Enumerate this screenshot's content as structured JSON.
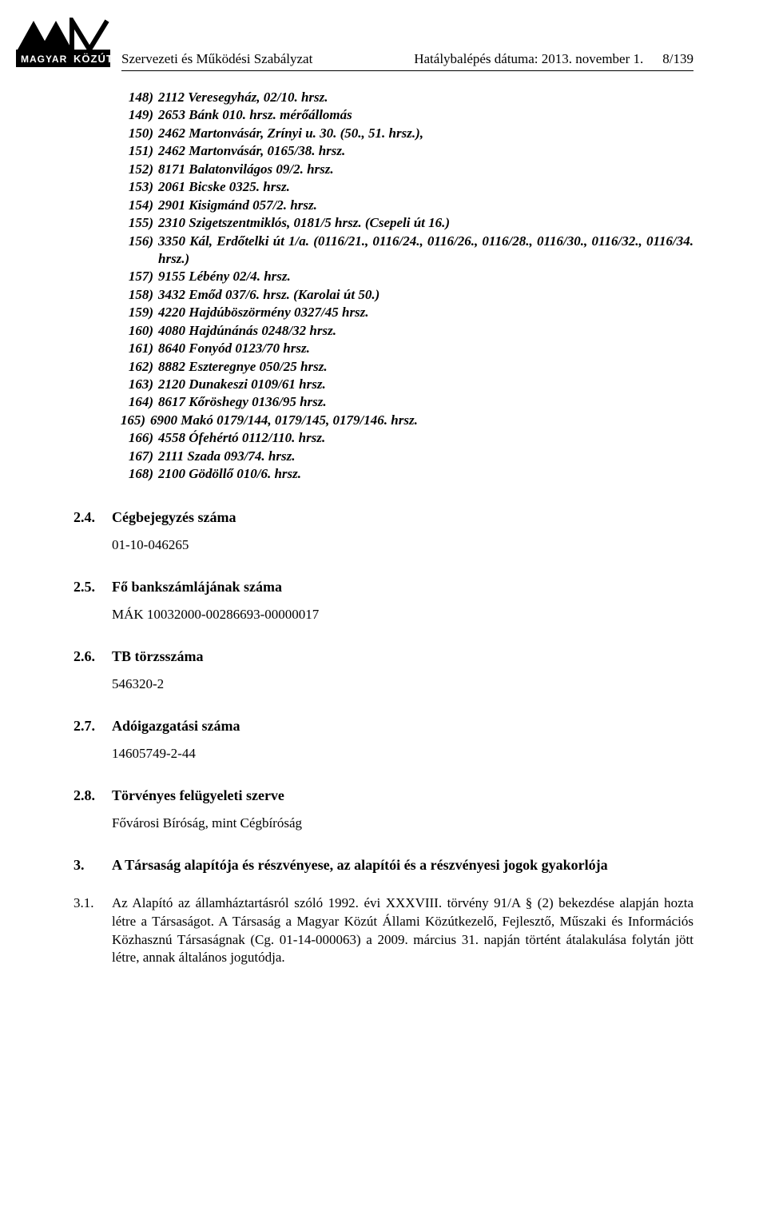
{
  "header": {
    "left": "Szervezeti és Működési Szabályzat",
    "right_a": "Hatálybalépés dátuma: 2013. november 1.",
    "right_b": "8/139"
  },
  "list_block": [
    {
      "n": "148)",
      "t": "2112 Veresegyház, 02/10. hrsz."
    },
    {
      "n": "149)",
      "t": "2653 Bánk 010. hrsz. mérőállomás"
    },
    {
      "n": "150)",
      "t": "2462 Martonvásár, Zrínyi u. 30. (50., 51. hrsz.),"
    },
    {
      "n": "151)",
      "t": "2462 Martonvásár, 0165/38. hrsz."
    },
    {
      "n": "152)",
      "t": "8171 Balatonvilágos 09/2. hrsz."
    },
    {
      "n": "153)",
      "t": "2061 Bicske 0325. hrsz."
    },
    {
      "n": "154)",
      "t": "2901 Kisigmánd 057/2. hrsz."
    },
    {
      "n": "155)",
      "t": "2310 Szigetszentmiklós, 0181/5 hrsz. (Csepeli út 16.)"
    },
    {
      "n": "156)",
      "t": "3350 Kál, Erdőtelki út 1/a. (0116/21., 0116/24., 0116/26., 0116/28., 0116/30., 0116/32., 0116/34. hrsz.)"
    },
    {
      "n": "157)",
      "t": "9155 Lébény 02/4. hrsz."
    },
    {
      "n": "158)",
      "t": "3432 Emőd  037/6. hrsz. (Karolai út 50.)"
    },
    {
      "n": "159)",
      "t": "4220 Hajdúböszörmény 0327/45 hrsz."
    },
    {
      "n": "160)",
      "t": "4080 Hajdúnánás 0248/32 hrsz."
    },
    {
      "n": "161)",
      "t": "8640 Fonyód 0123/70 hrsz."
    },
    {
      "n": "162)",
      "t": "8882 Eszteregnye 050/25 hrsz."
    },
    {
      "n": "163)",
      "t": "2120 Dunakeszi 0109/61 hrsz."
    },
    {
      "n": "164)",
      "t": "8617 Kőröshegy 0136/95 hrsz."
    },
    {
      "n": "165)",
      "t": "6900 Makó 0179/144, 0179/145, 0179/146. hrsz.",
      "outdent": true
    },
    {
      "n": "166)",
      "t": "4558 Ófehértó 0112/110. hrsz."
    },
    {
      "n": "167)",
      "t": "2111 Szada 093/74. hrsz."
    },
    {
      "n": "168)",
      "t": "2100 Gödöllő 010/6. hrsz."
    }
  ],
  "sections": [
    {
      "num": "2.4.",
      "title": "Cégbejegyzés száma",
      "body": "01-10-046265"
    },
    {
      "num": "2.5.",
      "title": "Fő bankszámlájának száma",
      "body": "MÁK 10032000-00286693-00000017"
    },
    {
      "num": "2.6.",
      "title": "TB törzsszáma",
      "body": "546320-2"
    },
    {
      "num": "2.7.",
      "title": "Adóigazgatási száma",
      "body": "14605749-2-44"
    },
    {
      "num": "2.8.",
      "title": "Törvényes felügyeleti szerve",
      "body": "Fővárosi Bíróság, mint Cégbíróság"
    }
  ],
  "section3": {
    "num": "3.",
    "title": "A Társaság alapítója és részvényese, az alapítói és a részvényesi jogok gyakorlója"
  },
  "para31": {
    "num": "3.1.",
    "text": "Az Alapító az államháztartásról szóló 1992. évi XXXVIII. törvény 91/A § (2) bekezdése alapján hozta létre a Társaságot. A Társaság a Magyar Közút Állami Közútkezelő, Fejlesztő, Műszaki és Információs Közhasznú Társaságnak (Cg. 01-14-000063) a 2009. március 31. napján történt átalakulása folytán jött létre, annak általános jogutódja."
  },
  "logo": {
    "text_top": "MAGYAR",
    "text_bottom": "KÖZÚT",
    "bg_color": "#000000",
    "fg_color": "#ffffff"
  }
}
